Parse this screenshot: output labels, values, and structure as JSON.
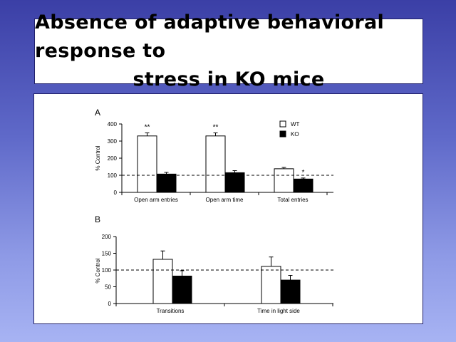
{
  "slide": {
    "title_line1": "Absence of adaptive behavioral response to",
    "title_line2": "stress in KO mice"
  },
  "chart_data": [
    {
      "type": "bar",
      "panel_label": "A",
      "ylabel": "% Control",
      "ylim": [
        0,
        400
      ],
      "yticks": [
        0,
        100,
        200,
        300,
        400
      ],
      "reference_line": 100,
      "categories": [
        "Open arm entries",
        "Open arm time",
        "Total entries"
      ],
      "series": [
        {
          "name": "WT",
          "values": [
            330,
            330,
            138
          ],
          "errors": [
            18,
            18,
            8
          ],
          "color": "#ffffff"
        },
        {
          "name": "KO",
          "values": [
            107,
            115,
            78
          ],
          "errors": [
            10,
            12,
            6
          ],
          "color": "#000000"
        }
      ],
      "annotations": [
        {
          "category": 0,
          "series": 0,
          "text": "**"
        },
        {
          "category": 1,
          "series": 0,
          "text": "**"
        },
        {
          "category": 2,
          "series": 1,
          "text": "*"
        }
      ],
      "legend": {
        "placement": "top-right"
      }
    },
    {
      "type": "bar",
      "panel_label": "B",
      "ylabel": "% Control",
      "ylim": [
        0,
        200
      ],
      "yticks": [
        0,
        50,
        100,
        150,
        200
      ],
      "reference_line": 100,
      "categories": [
        "Transitions",
        "Time in light side"
      ],
      "series": [
        {
          "name": "WT",
          "values": [
            132,
            111
          ],
          "errors": [
            25,
            28
          ],
          "color": "#ffffff"
        },
        {
          "name": "KO",
          "values": [
            82,
            70
          ],
          "errors": [
            16,
            14
          ],
          "color": "#000000"
        }
      ]
    }
  ]
}
